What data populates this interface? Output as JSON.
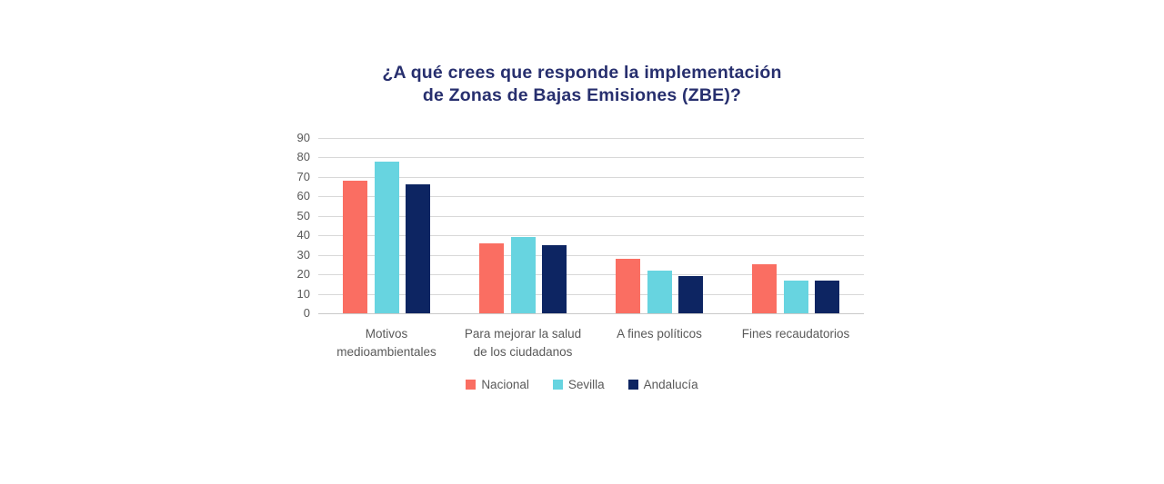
{
  "chart_data": {
    "type": "bar",
    "title": "¿A qué crees que responde la implementación de Zonas de Bajas Emisiones (ZBE)?",
    "title_lines": [
      "¿A qué crees que responde la implementación",
      "de Zonas de Bajas Emisiones (ZBE)?"
    ],
    "categories": [
      "Motivos medioambientales",
      "Para mejorar la salud de los ciudadanos",
      "A fines políticos",
      "Fines recaudatorios"
    ],
    "category_label_lines": [
      [
        "Motivos",
        "medioambientales"
      ],
      [
        "Para mejorar la salud",
        "de los ciudadanos"
      ],
      [
        "A fines políticos"
      ],
      [
        "Fines recaudatorios"
      ]
    ],
    "series": [
      {
        "name": "Nacional",
        "color": "#FA6E62",
        "values": [
          68,
          36,
          28,
          25
        ]
      },
      {
        "name": "Sevilla",
        "color": "#67D4E0",
        "values": [
          78,
          39,
          22,
          17
        ]
      },
      {
        "name": "Andalucía",
        "color": "#0D2562",
        "values": [
          66,
          35,
          19,
          17
        ]
      }
    ],
    "xlabel": "",
    "ylabel": "",
    "ylim": [
      0,
      90
    ],
    "y_ticks": [
      90,
      80,
      70,
      60,
      50,
      40,
      30,
      20,
      10,
      0
    ],
    "grid": true,
    "legend_position": "bottom"
  },
  "style": {
    "title_color": "#272F6E",
    "axis_text_color": "#595959",
    "gridline_color": "#D8D8D8",
    "background": "#FFFFFF"
  }
}
